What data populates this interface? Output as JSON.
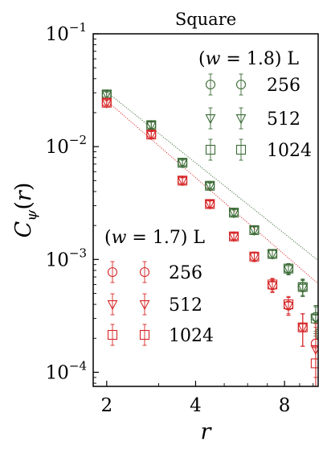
{
  "chart_data": {
    "type": "scatter",
    "title": "Square",
    "xlabel": "r",
    "ylabel": "C_ψ(r)",
    "xscale": "log",
    "yscale": "log",
    "xlim": [
      1.8,
      10.4
    ],
    "ylim": [
      7.5e-05,
      0.1
    ],
    "x_ticks": [
      2,
      4,
      8
    ],
    "x_tick_labels": [
      "2",
      "4",
      "8"
    ],
    "y_ticks": [
      0.1,
      0.01,
      0.001,
      0.0001
    ],
    "y_tick_labels": [
      {
        "base": "10",
        "exp": "−1"
      },
      {
        "base": "10",
        "exp": "−2"
      },
      {
        "base": "10",
        "exp": "−3"
      },
      {
        "base": "10",
        "exp": "−4"
      }
    ],
    "groups": [
      {
        "label_pre": "(",
        "label_var": "w",
        "label_post": " = 1.8) L",
        "color": "#3a6b35",
        "fit_line": {
          "x": [
            2.0,
            10.4
          ],
          "y": [
            0.0305,
            0.00098
          ]
        },
        "series": [
          {
            "name": "256",
            "marker": "circle",
            "x": [
              2.0,
              2.83,
              3.61,
              4.47,
              5.39,
              6.32,
              7.28,
              8.25,
              9.22,
              10.2
            ],
            "y": [
              0.029,
              0.0155,
              0.0072,
              0.0045,
              0.0026,
              0.00182,
              0.00112,
              0.00083,
              0.00057,
              0.00031
            ],
            "err": [
              0.0015,
              0.001,
              0.0004,
              0.00025,
              0.00015,
              0.00012,
              0.0001,
              9e-05,
              9e-05,
              8e-05
            ]
          },
          {
            "name": "512",
            "marker": "triangle-down",
            "x": [
              2.0,
              2.83,
              3.61,
              4.47,
              5.39,
              6.32,
              7.28,
              8.25,
              9.22,
              10.2
            ],
            "y": [
              0.029,
              0.0155,
              0.0072,
              0.0045,
              0.0026,
              0.00182,
              0.00112,
              0.00082,
              0.00056,
              0.0003
            ],
            "err": [
              0.0015,
              0.001,
              0.0004,
              0.00025,
              0.00015,
              0.00012,
              0.0001,
              9e-05,
              9e-05,
              8e-05
            ]
          },
          {
            "name": "1024",
            "marker": "square",
            "x": [
              2.0,
              2.83,
              3.61,
              4.47,
              5.39,
              6.32,
              7.28,
              8.25,
              9.22,
              10.2,
              10.6,
              11.0
            ],
            "y": [
              0.029,
              0.0155,
              0.0072,
              0.0045,
              0.0026,
              0.00182,
              0.00112,
              0.00083,
              0.00057,
              0.0003,
              0.00022,
              0.000175
            ],
            "err": [
              0.0015,
              0.001,
              0.0004,
              0.00025,
              0.00015,
              0.00012,
              0.0001,
              9e-05,
              0.0001,
              9e-05,
              7e-05,
              6e-05
            ]
          }
        ]
      },
      {
        "label_pre": "(",
        "label_var": "w",
        "label_post": " = 1.7) L",
        "color": "#d62728",
        "fit_line": {
          "x": [
            2.0,
            10.4
          ],
          "y": [
            0.0255,
            0.00061
          ]
        },
        "series": [
          {
            "name": "256",
            "marker": "circle",
            "x": [
              2.0,
              2.83,
              3.61,
              4.47,
              5.39,
              6.32,
              7.28,
              8.25,
              9.22,
              10.2
            ],
            "y": [
              0.0245,
              0.0128,
              0.005,
              0.0031,
              0.0016,
              0.00106,
              0.00059,
              0.00039,
              0.00025,
              0.00018
            ],
            "err": [
              0.0012,
              0.0008,
              0.0003,
              0.0002,
              0.0001,
              0.0001,
              8e-05,
              7e-05,
              8e-05,
              9e-05
            ]
          },
          {
            "name": "512",
            "marker": "triangle-down",
            "x": [
              2.0,
              2.83,
              3.61,
              4.47,
              5.39,
              6.32,
              7.28,
              8.25,
              9.22,
              10.2
            ],
            "y": [
              0.0245,
              0.0128,
              0.005,
              0.0031,
              0.0016,
              0.00106,
              0.00059,
              0.00039,
              0.00025,
              0.00016
            ],
            "err": [
              0.0012,
              0.0008,
              0.0003,
              0.0002,
              0.0001,
              0.0001,
              8e-05,
              7e-05,
              8e-05,
              9e-05
            ]
          },
          {
            "name": "1024",
            "marker": "square",
            "x": [
              2.0,
              2.83,
              3.61,
              4.47,
              5.39,
              6.32,
              7.28,
              8.25,
              9.22,
              10.2
            ],
            "y": [
              0.0245,
              0.0128,
              0.005,
              0.0031,
              0.0016,
              0.00106,
              0.0006,
              0.0004,
              0.00025,
              0.00012
            ],
            "err": [
              0.0012,
              0.0008,
              0.0003,
              0.0002,
              0.0001,
              0.0001,
              8e-05,
              7e-05,
              8e-05,
              5e-05
            ]
          }
        ]
      }
    ]
  }
}
